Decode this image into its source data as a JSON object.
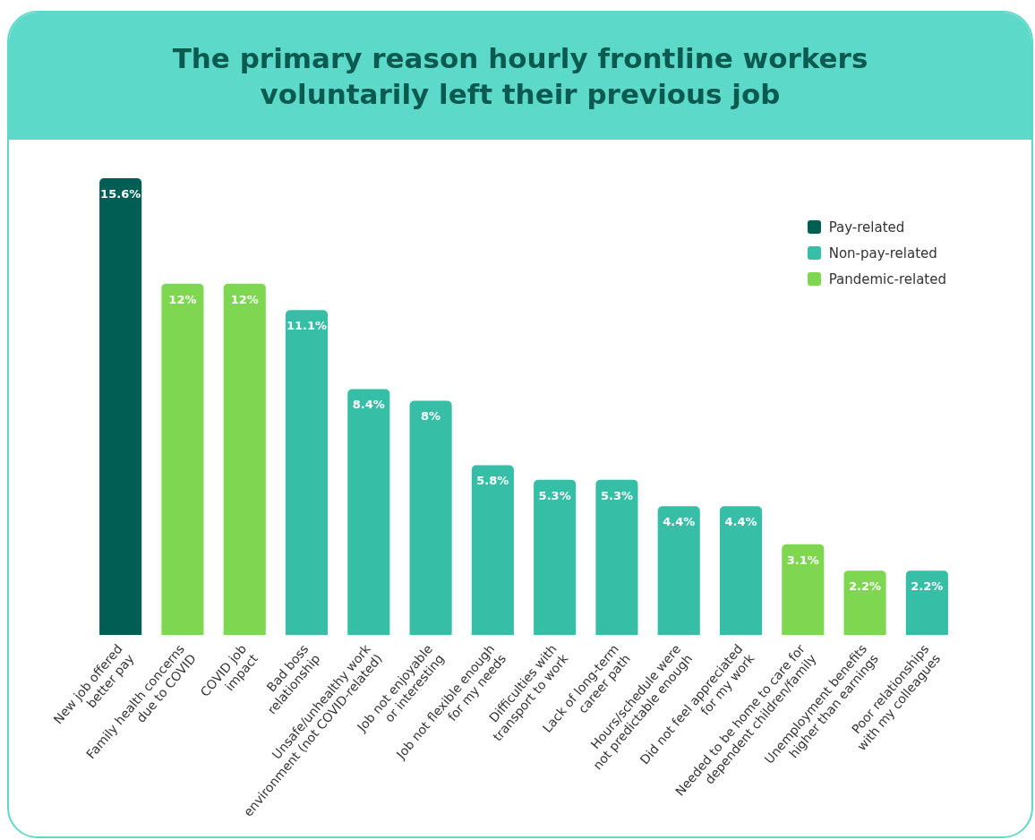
{
  "chart_data": {
    "type": "bar",
    "title": "The primary reason hourly frontline workers\nvoluntarily left their previous job",
    "categories": [
      "New job offered\nbetter pay",
      "Family health concerns\ndue to COVID",
      "COVID job\nimpact",
      "Bad boss\nrelationship",
      "Unsafe/unhealthy work\nenvironment (not COVID-related)",
      "Job not enjoyable\nor interesting",
      "Job not flexible enough\nfor my needs",
      "Difficulties with\ntransport to work",
      "Lack of long-term\ncareer path",
      "Hours/schedule were\nnot predictable enough",
      "Did not feel appreciated\nfor my work",
      "Needed to be home to care for\ndependent children/family",
      "Unemployment benefits\nhigher than earnings",
      "Poor relationships\nwith my colleagues"
    ],
    "series": [
      {
        "name": "Pay-related",
        "color": "#005e55",
        "values": [
          15.6,
          null,
          null,
          null,
          null,
          null,
          null,
          null,
          null,
          null,
          null,
          null,
          null,
          null
        ],
        "value_labels": [
          "15.6%",
          null,
          null,
          null,
          null,
          null,
          null,
          null,
          null,
          null,
          null,
          null,
          null,
          null
        ]
      },
      {
        "name": "Non-pay-related",
        "color": "#36bea6",
        "values": [
          null,
          null,
          null,
          11.1,
          8.4,
          8,
          5.8,
          5.3,
          5.3,
          4.4,
          4.4,
          null,
          null,
          2.2
        ],
        "value_labels": [
          null,
          null,
          null,
          "11.1%",
          "8.4%",
          "8%",
          "5.8%",
          "5.3%",
          "5.3%",
          "4.4%",
          "4.4%",
          null,
          null,
          "2.2%"
        ]
      },
      {
        "name": "Pandemic-related",
        "color": "#7fd650",
        "values": [
          null,
          12,
          12,
          null,
          null,
          null,
          null,
          null,
          null,
          null,
          null,
          3.1,
          2.2,
          null
        ],
        "value_labels": [
          null,
          "12%",
          "12%",
          null,
          null,
          null,
          null,
          null,
          null,
          null,
          null,
          "3.1%",
          "2.2%",
          null
        ]
      }
    ],
    "legend": "top right",
    "grid": false,
    "tick_labels": "x"
  }
}
